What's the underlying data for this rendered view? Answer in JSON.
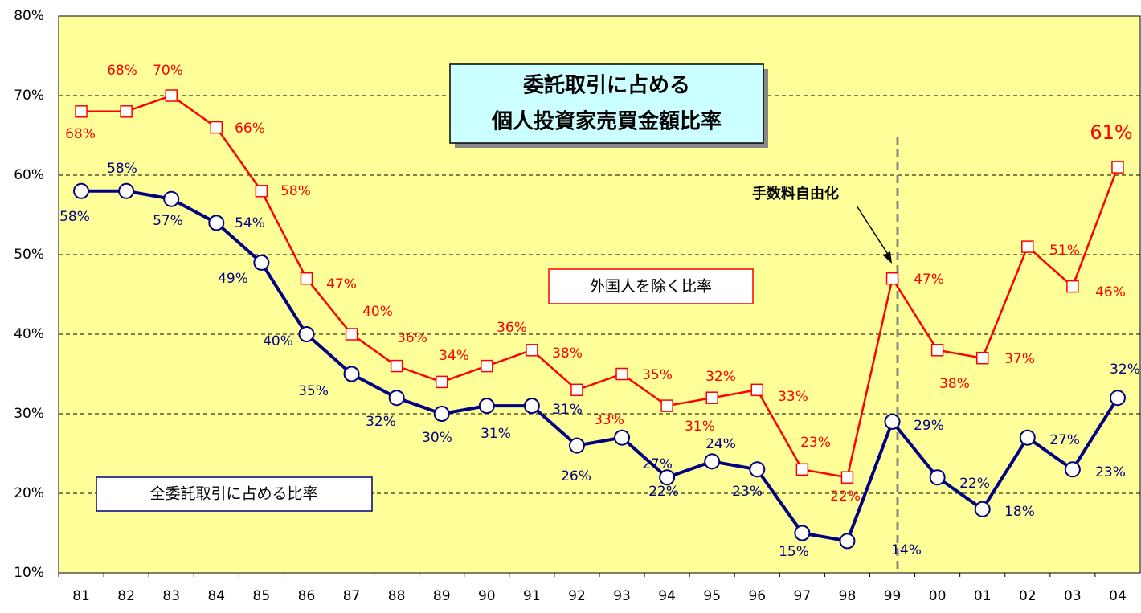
{
  "chart_data": {
    "type": "line",
    "title": [
      "委託取引に占める",
      "個人投資家売買金額比率"
    ],
    "categories": [
      "81",
      "82",
      "83",
      "84",
      "85",
      "86",
      "87",
      "88",
      "89",
      "90",
      "91",
      "92",
      "93",
      "94",
      "95",
      "96",
      "97",
      "98",
      "99",
      "00",
      "01",
      "02",
      "03",
      "04"
    ],
    "series": [
      {
        "name": "外国人を除く比率",
        "color": "#ff0000",
        "values": [
          68,
          68,
          70,
          66,
          58,
          47,
          40,
          36,
          34,
          36,
          38,
          33,
          35,
          31,
          32,
          33,
          23,
          22,
          47,
          38,
          37,
          51,
          46,
          61
        ],
        "value_labels": [
          "68%",
          "68%",
          "70%",
          "66%",
          "58%",
          "47%",
          "40%",
          "36%",
          "34%",
          "36%",
          "38%",
          "33%",
          "35%",
          "31%",
          "32%",
          "33%",
          "23%",
          "22%",
          "47%",
          "38%",
          "37%",
          "51%",
          "46%",
          "61%"
        ]
      },
      {
        "name": "全委託取引に占める比率",
        "color": "#000080",
        "values": [
          58,
          58,
          57,
          54,
          49,
          40,
          35,
          32,
          30,
          31,
          31,
          26,
          27,
          22,
          24,
          23,
          15,
          14,
          29,
          22,
          18,
          27,
          23,
          32
        ],
        "value_labels": [
          "58%",
          "58%",
          "57%",
          "54%",
          "49%",
          "40%",
          "35%",
          "32%",
          "30%",
          "31%",
          "31%",
          "26%",
          "27%",
          "22%",
          "24%",
          "23%",
          "15%",
          "14%",
          "29%",
          "22%",
          "18%",
          "27%",
          "23%",
          "32%"
        ]
      }
    ],
    "annotations": [
      {
        "text": "手数料自由化",
        "x": "99"
      }
    ],
    "ylim": [
      10,
      80
    ],
    "yticks": [
      {
        "value": 10,
        "label": "10%"
      },
      {
        "value": 20,
        "label": "20%"
      },
      {
        "value": 30,
        "label": "30%"
      },
      {
        "value": 40,
        "label": "40%"
      },
      {
        "value": 50,
        "label": "50%"
      },
      {
        "value": 60,
        "label": "60%"
      },
      {
        "value": 70,
        "label": "70%"
      },
      {
        "value": 80,
        "label": "80%"
      }
    ],
    "grid": true
  }
}
